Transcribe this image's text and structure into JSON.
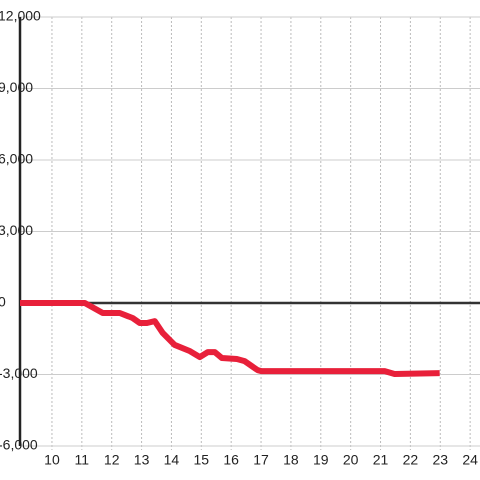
{
  "chart_data": {
    "type": "line",
    "x": [
      8.93,
      11.1,
      11.7,
      12.27,
      12.7,
      12.94,
      13.18,
      13.44,
      13.71,
      14.11,
      14.62,
      14.95,
      15.22,
      15.45,
      15.69,
      16.19,
      16.45,
      16.89,
      17.02,
      21.14,
      21.47,
      22.98
    ],
    "series": [
      {
        "color": "#e8203a",
        "values": [
          0,
          0,
          -420,
          -420,
          -630,
          -840,
          -840,
          -760,
          -1260,
          -1760,
          -2020,
          -2270,
          -2060,
          -2060,
          -2310,
          -2350,
          -2440,
          -2820,
          -2860,
          -2860,
          -2980,
          -2940
        ]
      }
    ],
    "xlim": [
      8.93,
      24.33
    ],
    "xticks": [
      10,
      11,
      12,
      13,
      14,
      15,
      16,
      17,
      18,
      19,
      20,
      21,
      22,
      23,
      24
    ],
    "ylim": [
      -6000,
      12000
    ],
    "yticks": [
      {
        "value": -6000,
        "label": "-6,000"
      },
      {
        "value": -3000,
        "label": "-3,000"
      },
      0,
      {
        "value": 3000,
        "label": "3,000"
      },
      {
        "value": 6000,
        "label": "6,000"
      },
      {
        "value": 9000,
        "label": "9,000"
      },
      {
        "value": 12000,
        "label": "12,000"
      }
    ],
    "grid": true
  }
}
